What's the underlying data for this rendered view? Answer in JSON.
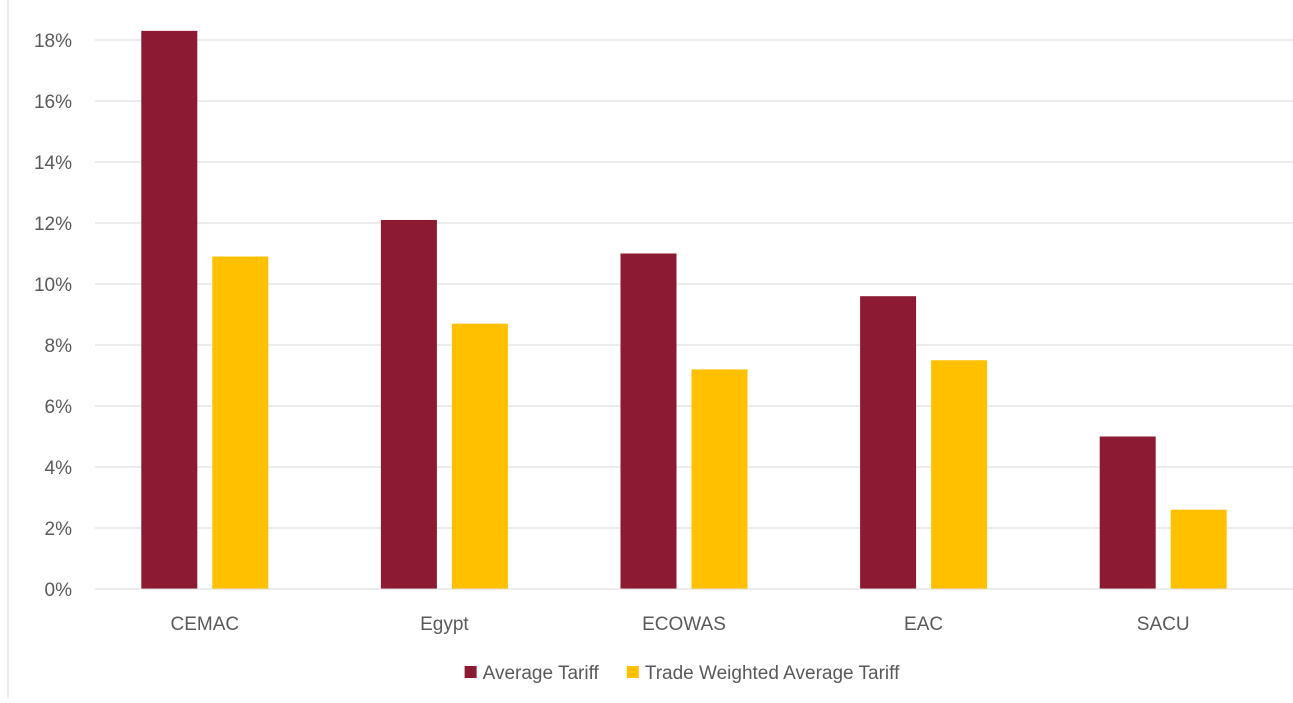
{
  "chart_data": {
    "type": "bar",
    "categories": [
      "CEMAC",
      "Egypt",
      "ECOWAS",
      "EAC",
      "SACU"
    ],
    "series": [
      {
        "name": "Average Tariff",
        "color": "#8B1A32",
        "values": [
          18.3,
          12.1,
          11.0,
          9.6,
          5.0
        ]
      },
      {
        "name": "Trade Weighted Average Tariff",
        "color": "#FFC000",
        "values": [
          10.9,
          8.7,
          7.2,
          7.5,
          2.6
        ]
      }
    ],
    "y_ticks": [
      "0%",
      "2%",
      "4%",
      "6%",
      "8%",
      "10%",
      "12%",
      "14%",
      "16%",
      "18%"
    ],
    "ylim": [
      0,
      18
    ],
    "y_unit": "%",
    "grid": true,
    "gridline_color": "#D9D9D9",
    "legend_position": "bottom-center"
  }
}
